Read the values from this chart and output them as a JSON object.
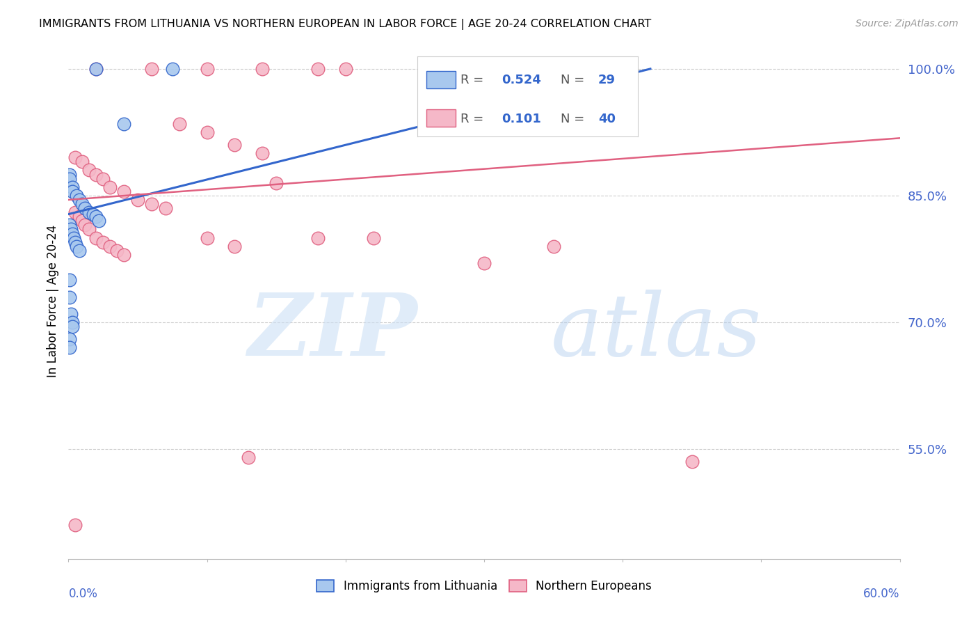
{
  "title": "IMMIGRANTS FROM LITHUANIA VS NORTHERN EUROPEAN IN LABOR FORCE | AGE 20-24 CORRELATION CHART",
  "source": "Source: ZipAtlas.com",
  "ylabel": "In Labor Force | Age 20-24",
  "ytick_labels": [
    "100.0%",
    "85.0%",
    "70.0%",
    "55.0%"
  ],
  "ytick_values": [
    1.0,
    0.85,
    0.7,
    0.55
  ],
  "xlim": [
    0.0,
    0.6
  ],
  "ylim": [
    0.42,
    1.03
  ],
  "legend_blue_R": "0.524",
  "legend_blue_N": "29",
  "legend_pink_R": "0.101",
  "legend_pink_N": "40",
  "blue_color": "#a8c8ee",
  "pink_color": "#f5b8c8",
  "line_blue": "#3366cc",
  "line_pink": "#e06080",
  "blue_points_x": [
    0.02,
    0.075,
    0.001,
    0.001,
    0.003,
    0.003,
    0.006,
    0.008,
    0.01,
    0.012,
    0.015,
    0.018,
    0.02,
    0.022,
    0.001,
    0.002,
    0.003,
    0.004,
    0.005,
    0.006,
    0.008,
    0.001,
    0.001,
    0.002,
    0.003,
    0.003,
    0.001,
    0.001,
    0.04
  ],
  "blue_points_y": [
    1.0,
    1.0,
    0.875,
    0.87,
    0.86,
    0.855,
    0.85,
    0.845,
    0.84,
    0.835,
    0.83,
    0.828,
    0.825,
    0.82,
    0.815,
    0.81,
    0.805,
    0.8,
    0.795,
    0.79,
    0.785,
    0.75,
    0.73,
    0.71,
    0.7,
    0.695,
    0.68,
    0.67,
    0.935
  ],
  "pink_points_x": [
    0.02,
    0.06,
    0.1,
    0.14,
    0.18,
    0.2,
    0.08,
    0.1,
    0.12,
    0.14,
    0.005,
    0.01,
    0.015,
    0.02,
    0.025,
    0.03,
    0.04,
    0.05,
    0.06,
    0.07,
    0.005,
    0.008,
    0.01,
    0.012,
    0.015,
    0.02,
    0.025,
    0.03,
    0.035,
    0.04,
    0.1,
    0.12,
    0.15,
    0.18,
    0.22,
    0.3,
    0.35,
    0.45,
    0.13,
    0.005
  ],
  "pink_points_y": [
    1.0,
    1.0,
    1.0,
    1.0,
    1.0,
    1.0,
    0.935,
    0.925,
    0.91,
    0.9,
    0.895,
    0.89,
    0.88,
    0.875,
    0.87,
    0.86,
    0.855,
    0.845,
    0.84,
    0.835,
    0.83,
    0.825,
    0.82,
    0.815,
    0.81,
    0.8,
    0.795,
    0.79,
    0.785,
    0.78,
    0.8,
    0.79,
    0.865,
    0.8,
    0.8,
    0.77,
    0.79,
    0.535,
    0.54,
    0.46
  ],
  "blue_line_x": [
    0.0,
    0.42
  ],
  "blue_line_y": [
    0.828,
    1.0
  ],
  "pink_line_x": [
    0.0,
    0.6
  ],
  "pink_line_y": [
    0.845,
    0.918
  ]
}
